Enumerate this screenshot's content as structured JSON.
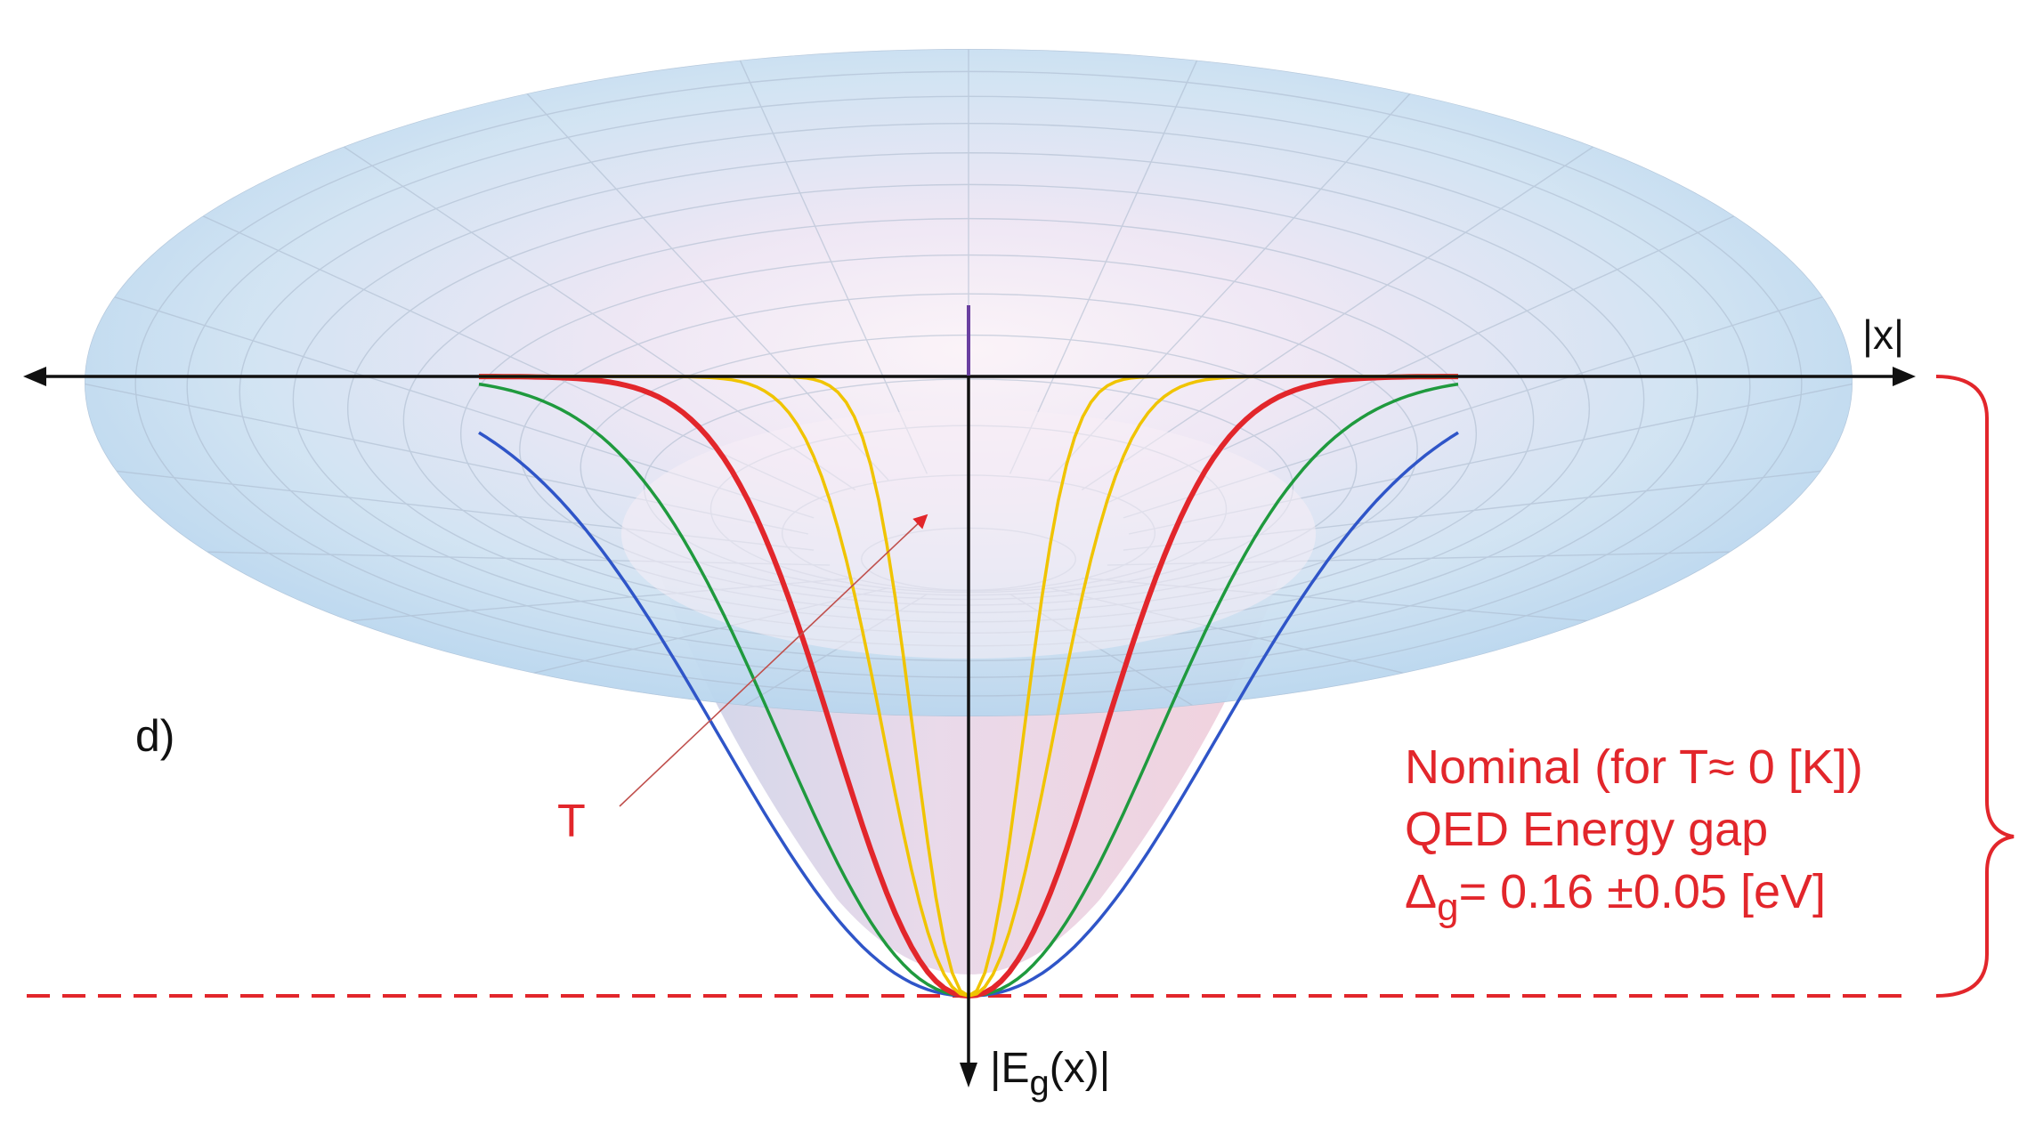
{
  "panel_label": "d)",
  "x_axis_label": "|x|",
  "y_axis_label_main": "|E",
  "y_axis_label_sub": "g",
  "y_axis_label_tail": "(x)|",
  "temperature_label": "T",
  "annotation": {
    "line1": "Nominal (for T≈ 0 [K])",
    "line2": "QED Energy gap",
    "line3_delta": "Δ",
    "line3_sub": "g",
    "line3_rest": "= 0.16 ±0.05 [eV]"
  },
  "colors": {
    "annotation": "#e2262b",
    "axis": "#111111",
    "surface_outer": "#bcd8ee",
    "surface_inner": "#f2e4f0",
    "vertical_marker": "#6a3fa0"
  },
  "curves": [
    {
      "color": "#2f55c8",
      "width_fraction": 0.5
    },
    {
      "color": "#1f9a3e",
      "width_fraction": 0.38
    },
    {
      "color": "#e2262b",
      "width_fraction": 0.27
    },
    {
      "color": "#f0c400",
      "width_fraction": 0.17
    },
    {
      "color": "#f0c400",
      "width_fraction": 0.11
    }
  ]
}
